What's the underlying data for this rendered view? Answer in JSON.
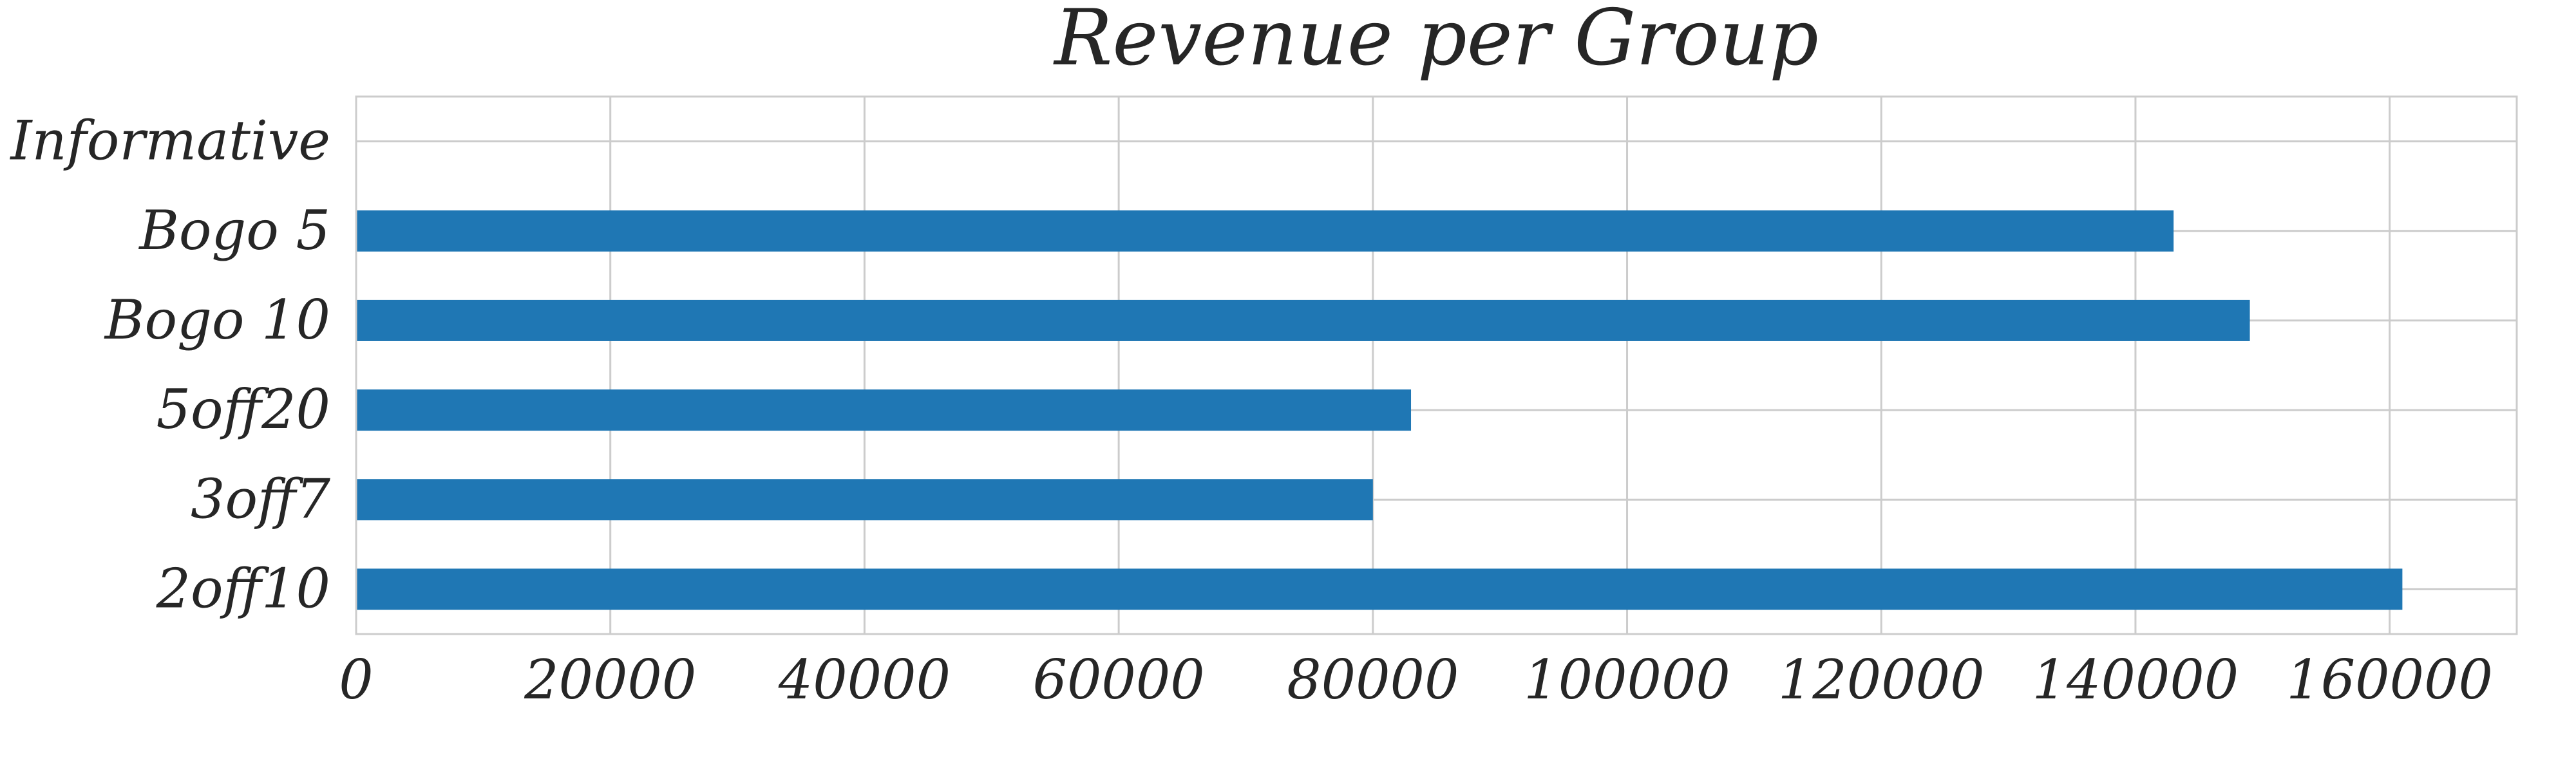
{
  "chart_data": {
    "type": "bar",
    "orientation": "horizontal",
    "title": "Revenue per Group",
    "xlabel": "",
    "ylabel": "",
    "categories": [
      "2off10",
      "3off7",
      "5off20",
      "Bogo 10",
      "Bogo 5",
      "Informative"
    ],
    "values": [
      161000,
      80000,
      83000,
      149000,
      143000,
      0
    ],
    "xlim": [
      0,
      170000
    ],
    "xticks": [
      0,
      20000,
      40000,
      60000,
      80000,
      100000,
      120000,
      140000,
      160000
    ],
    "xtick_labels": [
      "0",
      "20000",
      "40000",
      "60000",
      "80000",
      "100000",
      "120000",
      "140000",
      "160000"
    ],
    "grid": true,
    "legend": "none",
    "colors": {
      "bar": "#1f77b4",
      "grid": "#cccccc",
      "axes_edge": "#cccccc",
      "text": "#262626"
    }
  }
}
